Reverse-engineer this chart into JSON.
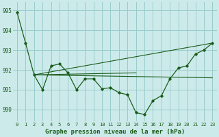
{
  "title": "Graphe pression niveau de la mer (hPa)",
  "bg_color": "#cceaea",
  "grid_color": "#99cccc",
  "line_color": "#1a5c1a",
  "xlim": [
    -0.5,
    23.5
  ],
  "ylim": [
    989.4,
    995.4
  ],
  "yticks": [
    990,
    991,
    992,
    993,
    994,
    995
  ],
  "xticks": [
    0,
    1,
    2,
    3,
    4,
    5,
    6,
    7,
    8,
    9,
    10,
    11,
    12,
    13,
    14,
    15,
    16,
    17,
    18,
    19,
    20,
    21,
    22,
    23
  ],
  "series_main": {
    "x": [
      0,
      1,
      2,
      3,
      4,
      5,
      6,
      7,
      8,
      9,
      10,
      11,
      12,
      13,
      14,
      15,
      16,
      17,
      18,
      19,
      20,
      21,
      22,
      23
    ],
    "y": [
      994.9,
      993.35,
      991.75,
      991.0,
      992.2,
      992.3,
      991.85,
      991.0,
      991.55,
      991.55,
      991.05,
      991.1,
      990.85,
      990.75,
      989.85,
      989.75,
      990.45,
      990.7,
      991.55,
      992.1,
      992.2,
      992.8,
      993.0,
      993.35
    ]
  },
  "line_flat": {
    "x": [
      2,
      23
    ],
    "y": [
      991.75,
      991.6
    ]
  },
  "line_short": {
    "x": [
      2,
      14
    ],
    "y": [
      991.75,
      991.85
    ]
  },
  "line_rise": {
    "x": [
      2,
      23
    ],
    "y": [
      991.75,
      993.35
    ]
  }
}
